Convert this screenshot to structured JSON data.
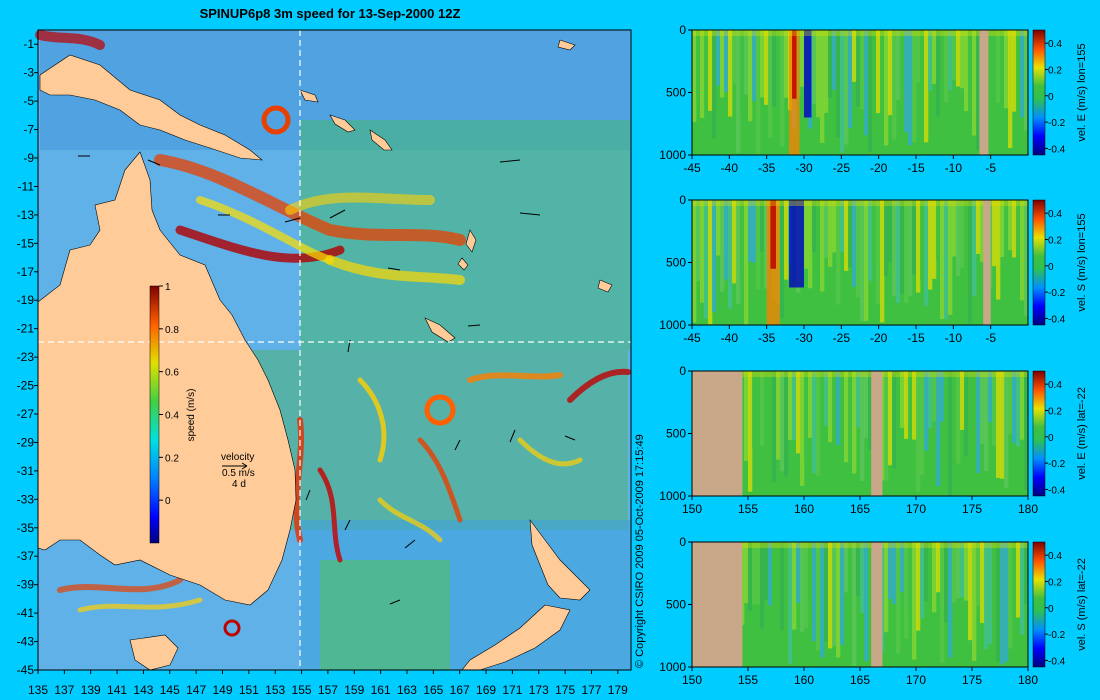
{
  "title": "SPINUP6p8 3m speed for 13-Sep-2000 12Z",
  "copyright": "© Copyright CSIRO 2009   05-Oct-2009 17:15:49",
  "colors": {
    "background": "#00ccff",
    "land": "#ffcc99",
    "section_land": "#c8a888"
  },
  "map": {
    "lon_ticks": [
      "135",
      "137",
      "139",
      "141",
      "143",
      "145",
      "147",
      "149",
      "151",
      "153",
      "155",
      "157",
      "159",
      "161",
      "163",
      "165",
      "167",
      "169",
      "171",
      "173",
      "175",
      "177",
      "179"
    ],
    "lat_ticks": [
      "-1",
      "-3",
      "-5",
      "-7",
      "-9",
      "-11",
      "-13",
      "-15",
      "-17",
      "-19",
      "-21",
      "-23",
      "-25",
      "-27",
      "-29",
      "-31",
      "-33",
      "-35",
      "-37",
      "-39",
      "-41",
      "-43",
      "-45"
    ],
    "lon_range": [
      135,
      180
    ],
    "lat_range": [
      -45,
      0
    ],
    "section_lon": 155,
    "section_lat": -22,
    "colorbar": {
      "label": "speed (m/s)",
      "ticks": [
        "1",
        "0.8",
        "0.6",
        "0.4",
        "0.2",
        "0"
      ],
      "range": [
        -0.2,
        1
      ]
    },
    "velocity_key": {
      "title": "velocity",
      "speed": "0.5 m/s",
      "duration": "4 d"
    }
  },
  "chart_data": [
    {
      "type": "heatmap",
      "title": "SPINUP6p8 3m speed for 13-Sep-2000 12Z",
      "xlabel": "",
      "ylabel": "",
      "xlim": [
        135,
        180
      ],
      "ylim": [
        -45,
        0
      ],
      "colorbar_label": "speed (m/s)",
      "colorbar_range": [
        -0.2,
        1
      ]
    },
    {
      "type": "heatmap",
      "x_ticks": [
        "-45",
        "-40",
        "-35",
        "-30",
        "-25",
        "-20",
        "-15",
        "-10",
        "-5"
      ],
      "xlim": [
        -45,
        0
      ],
      "y_ticks": [
        "0",
        "500",
        "1000"
      ],
      "ylim": [
        1000,
        0
      ],
      "colorbar_label": "vel. E (m/s) lon=155",
      "colorbar_ticks": [
        "0.4",
        "0.2",
        "0",
        "-0.2",
        "-0.4"
      ],
      "colorbar_range": [
        -0.45,
        0.5
      ],
      "land_x": [
        -6.5,
        -5.3
      ],
      "strong_positive_x": [
        -32,
        -28
      ],
      "strong_negative_x": [
        -30,
        -29
      ]
    },
    {
      "type": "heatmap",
      "x_ticks": [
        "-45",
        "-40",
        "-35",
        "-30",
        "-25",
        "-20",
        "-15",
        "-10",
        "-5"
      ],
      "xlim": [
        -45,
        0
      ],
      "y_ticks": [
        "0",
        "500",
        "1000"
      ],
      "ylim": [
        1000,
        0
      ],
      "colorbar_label": "vel. S (m/s) lon=155",
      "colorbar_ticks": [
        "0.4",
        "0.2",
        "0",
        "-0.2",
        "-0.4"
      ],
      "colorbar_range": [
        -0.45,
        0.5
      ],
      "land_x": [
        -6,
        -5
      ],
      "strong_positive_x": [
        -35,
        -30
      ],
      "strong_negative_x": [
        -32,
        -30
      ]
    },
    {
      "type": "heatmap",
      "x_ticks": [
        "150",
        "155",
        "160",
        "165",
        "170",
        "175",
        "180"
      ],
      "xlim": [
        150,
        180
      ],
      "y_ticks": [
        "0",
        "500",
        "1000"
      ],
      "ylim": [
        1000,
        0
      ],
      "colorbar_label": "vel. E (m/s) lat=-22",
      "colorbar_ticks": [
        "0.4",
        "0.2",
        "0",
        "-0.2",
        "-0.4"
      ],
      "colorbar_range": [
        -0.45,
        0.5
      ],
      "land_x": [
        [
          150,
          154.5
        ],
        [
          166,
          167
        ]
      ]
    },
    {
      "type": "heatmap",
      "x_ticks": [
        "150",
        "155",
        "160",
        "165",
        "170",
        "175",
        "180"
      ],
      "xlim": [
        150,
        180
      ],
      "y_ticks": [
        "0",
        "500",
        "1000"
      ],
      "ylim": [
        1000,
        0
      ],
      "colorbar_label": "vel. S (m/s) lat=-22",
      "colorbar_ticks": [
        "0.4",
        "0.2",
        "0",
        "-0.2",
        "-0.4"
      ],
      "colorbar_range": [
        -0.45,
        0.5
      ],
      "land_x": [
        [
          150,
          154.5
        ],
        [
          166,
          167
        ]
      ]
    }
  ]
}
